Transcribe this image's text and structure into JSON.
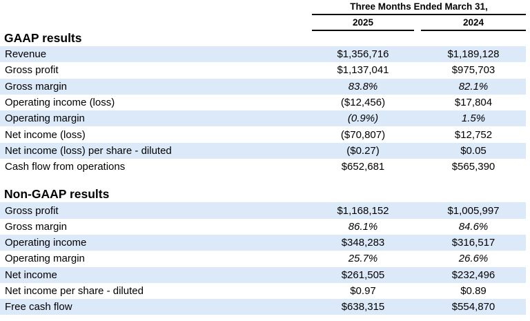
{
  "table": {
    "period_header": "Three Months Ended March 31,",
    "columns": [
      "2025",
      "2024"
    ],
    "colors": {
      "row_shade": "#dbe9f9",
      "rule": "#000000",
      "text": "#000000"
    },
    "sections": [
      {
        "heading": "GAAP results",
        "rows": [
          {
            "label": "Revenue",
            "values": [
              "$1,356,716",
              "$1,189,128"
            ],
            "italic": false,
            "shaded": true
          },
          {
            "label": "Gross profit",
            "values": [
              "$1,137,041",
              "$975,703"
            ],
            "italic": false,
            "shaded": false
          },
          {
            "label": "Gross margin",
            "values": [
              "83.8%",
              "82.1%"
            ],
            "italic": true,
            "shaded": true
          },
          {
            "label": "Operating income (loss)",
            "values": [
              "($12,456)",
              "$17,804"
            ],
            "italic": false,
            "shaded": false
          },
          {
            "label": "Operating margin",
            "values": [
              "(0.9%)",
              "1.5%"
            ],
            "italic": true,
            "shaded": true
          },
          {
            "label": "Net income (loss)",
            "values": [
              "($70,807)",
              "$12,752"
            ],
            "italic": false,
            "shaded": false
          },
          {
            "label": "Net income (loss) per share - diluted",
            "values": [
              "($0.27)",
              "$0.05"
            ],
            "italic": false,
            "shaded": true
          },
          {
            "label": "Cash flow from operations",
            "values": [
              "$652,681",
              "$565,390"
            ],
            "italic": false,
            "shaded": false
          }
        ]
      },
      {
        "heading": "Non-GAAP results",
        "rows": [
          {
            "label": "Gross profit",
            "values": [
              "$1,168,152",
              "$1,005,997"
            ],
            "italic": false,
            "shaded": true
          },
          {
            "label": "Gross margin",
            "values": [
              "86.1%",
              "84.6%"
            ],
            "italic": true,
            "shaded": false
          },
          {
            "label": "Operating income",
            "values": [
              "$348,283",
              "$316,517"
            ],
            "italic": false,
            "shaded": true
          },
          {
            "label": "Operating margin",
            "values": [
              "25.7%",
              "26.6%"
            ],
            "italic": true,
            "shaded": false
          },
          {
            "label": "Net income",
            "values": [
              "$261,505",
              "$232,496"
            ],
            "italic": false,
            "shaded": true
          },
          {
            "label": "Net income per share - diluted",
            "values": [
              "$0.97",
              "$0.89"
            ],
            "italic": false,
            "shaded": false
          },
          {
            "label": "Free cash flow",
            "values": [
              "$638,315",
              "$554,870"
            ],
            "italic": false,
            "shaded": true
          }
        ]
      }
    ]
  }
}
